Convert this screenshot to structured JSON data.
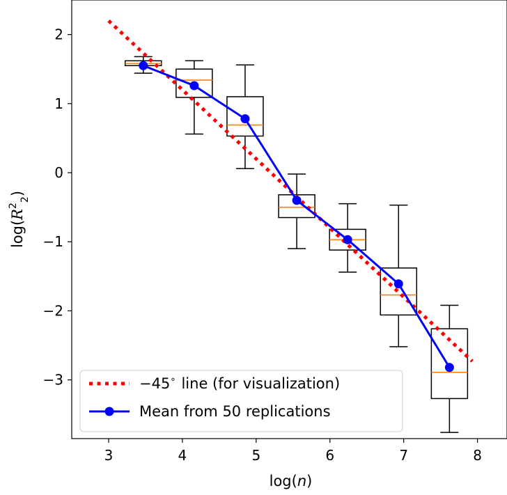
{
  "chart_data": {
    "type": "box",
    "xlabel_prefix": "log(",
    "xlabel_var": "n",
    "xlabel_suffix": ")",
    "ylabel_prefix": "log(",
    "ylabel_var": "R",
    "ylabel_sub": "2",
    "ylabel_sup": "2",
    "ylabel_suffix": ")",
    "xlim": [
      2.5,
      8.4
    ],
    "ylim": [
      -3.85,
      2.5
    ],
    "xticks": [
      3,
      4,
      5,
      6,
      7,
      8
    ],
    "xtick_labels": [
      "3",
      "4",
      "5",
      "6",
      "7",
      "8"
    ],
    "yticks": [
      -3,
      -2,
      -1,
      0,
      1,
      2
    ],
    "ytick_labels": [
      "−3",
      "−2",
      "−1",
      "0",
      "1",
      "2"
    ],
    "boxes": [
      {
        "x": 3.47,
        "whisker_low": 1.44,
        "q1": 1.55,
        "median": 1.58,
        "q3": 1.62,
        "whisker_high": 1.68
      },
      {
        "x": 4.16,
        "whisker_low": 0.56,
        "q1": 1.09,
        "median": 1.34,
        "q3": 1.5,
        "whisker_high": 1.62
      },
      {
        "x": 4.85,
        "whisker_low": 0.06,
        "q1": 0.53,
        "median": 0.69,
        "q3": 1.1,
        "whisker_high": 1.56
      },
      {
        "x": 5.55,
        "whisker_low": -1.1,
        "q1": -0.65,
        "median": -0.5,
        "q3": -0.32,
        "whisker_high": -0.02
      },
      {
        "x": 6.24,
        "whisker_low": -1.44,
        "q1": -1.12,
        "median": -0.97,
        "q3": -0.82,
        "whisker_high": -0.45
      },
      {
        "x": 6.93,
        "whisker_low": -2.52,
        "q1": -2.06,
        "median": -1.77,
        "q3": -1.38,
        "whisker_high": -0.47
      },
      {
        "x": 7.62,
        "whisker_low": -3.76,
        "q1": -3.27,
        "median": -2.89,
        "q3": -2.26,
        "whisker_high": -1.92
      }
    ],
    "series": [
      {
        "name": "−45° line (for visualization)",
        "style": "dotted",
        "color": "#ff0000",
        "x": [
          3.0,
          7.93
        ],
        "y": [
          2.2,
          -2.73
        ]
      },
      {
        "name": "Mean from 50 replications",
        "style": "solid-with-markers",
        "color": "#0000ff",
        "x": [
          3.47,
          4.16,
          4.85,
          5.55,
          6.24,
          6.93,
          7.62
        ],
        "y": [
          1.55,
          1.26,
          0.78,
          -0.4,
          -0.97,
          -1.61,
          -2.82
        ]
      }
    ],
    "median_color": "#ff7f0e",
    "legend": {
      "position": "lower-left",
      "entries": [
        {
          "label": "−45",
          "degree_symbol": "∘",
          "label_rest": "line (for visualization)"
        },
        {
          "label": "Mean from 50 replications"
        }
      ]
    },
    "grid": false
  }
}
